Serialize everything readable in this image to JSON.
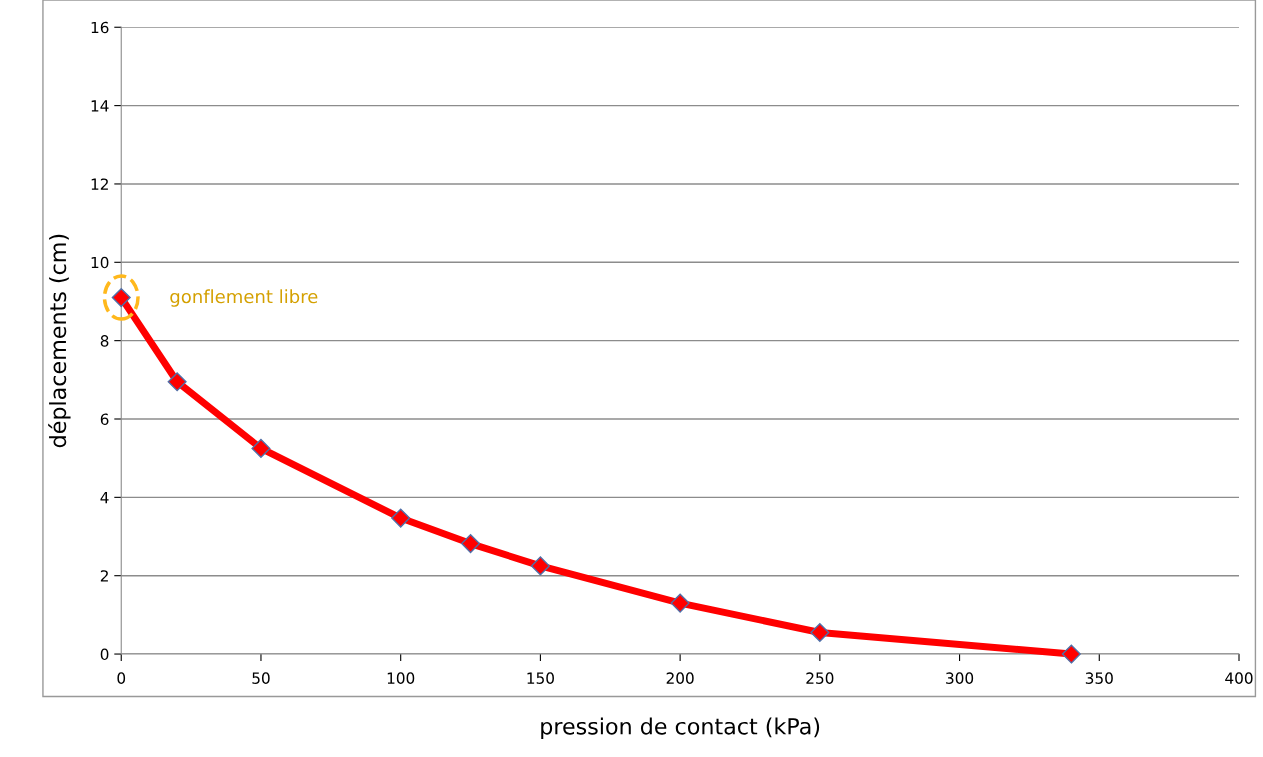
{
  "chart_data": {
    "type": "line",
    "xlabel": "pression de contact (kPa)",
    "ylabel": "déplacements (cm)",
    "x": [
      0,
      20,
      50,
      100,
      125,
      150,
      200,
      250,
      340
    ],
    "series": [
      {
        "color": "#ff0000",
        "values": [
          9.1,
          6.95,
          5.25,
          3.47,
          2.82,
          2.25,
          1.3,
          0.55,
          0
        ]
      }
    ],
    "xlim": [
      0,
      400
    ],
    "xticks": [
      0,
      50,
      100,
      150,
      200,
      250,
      300,
      350,
      400
    ],
    "ylim": [
      0,
      16
    ],
    "yticks": [
      0,
      2,
      4,
      6,
      8,
      10,
      12,
      14,
      16
    ],
    "grid": "y",
    "marker": "diamond",
    "line_style": "solid",
    "legend": false,
    "annotations": [
      "gonflement libre"
    ]
  }
}
